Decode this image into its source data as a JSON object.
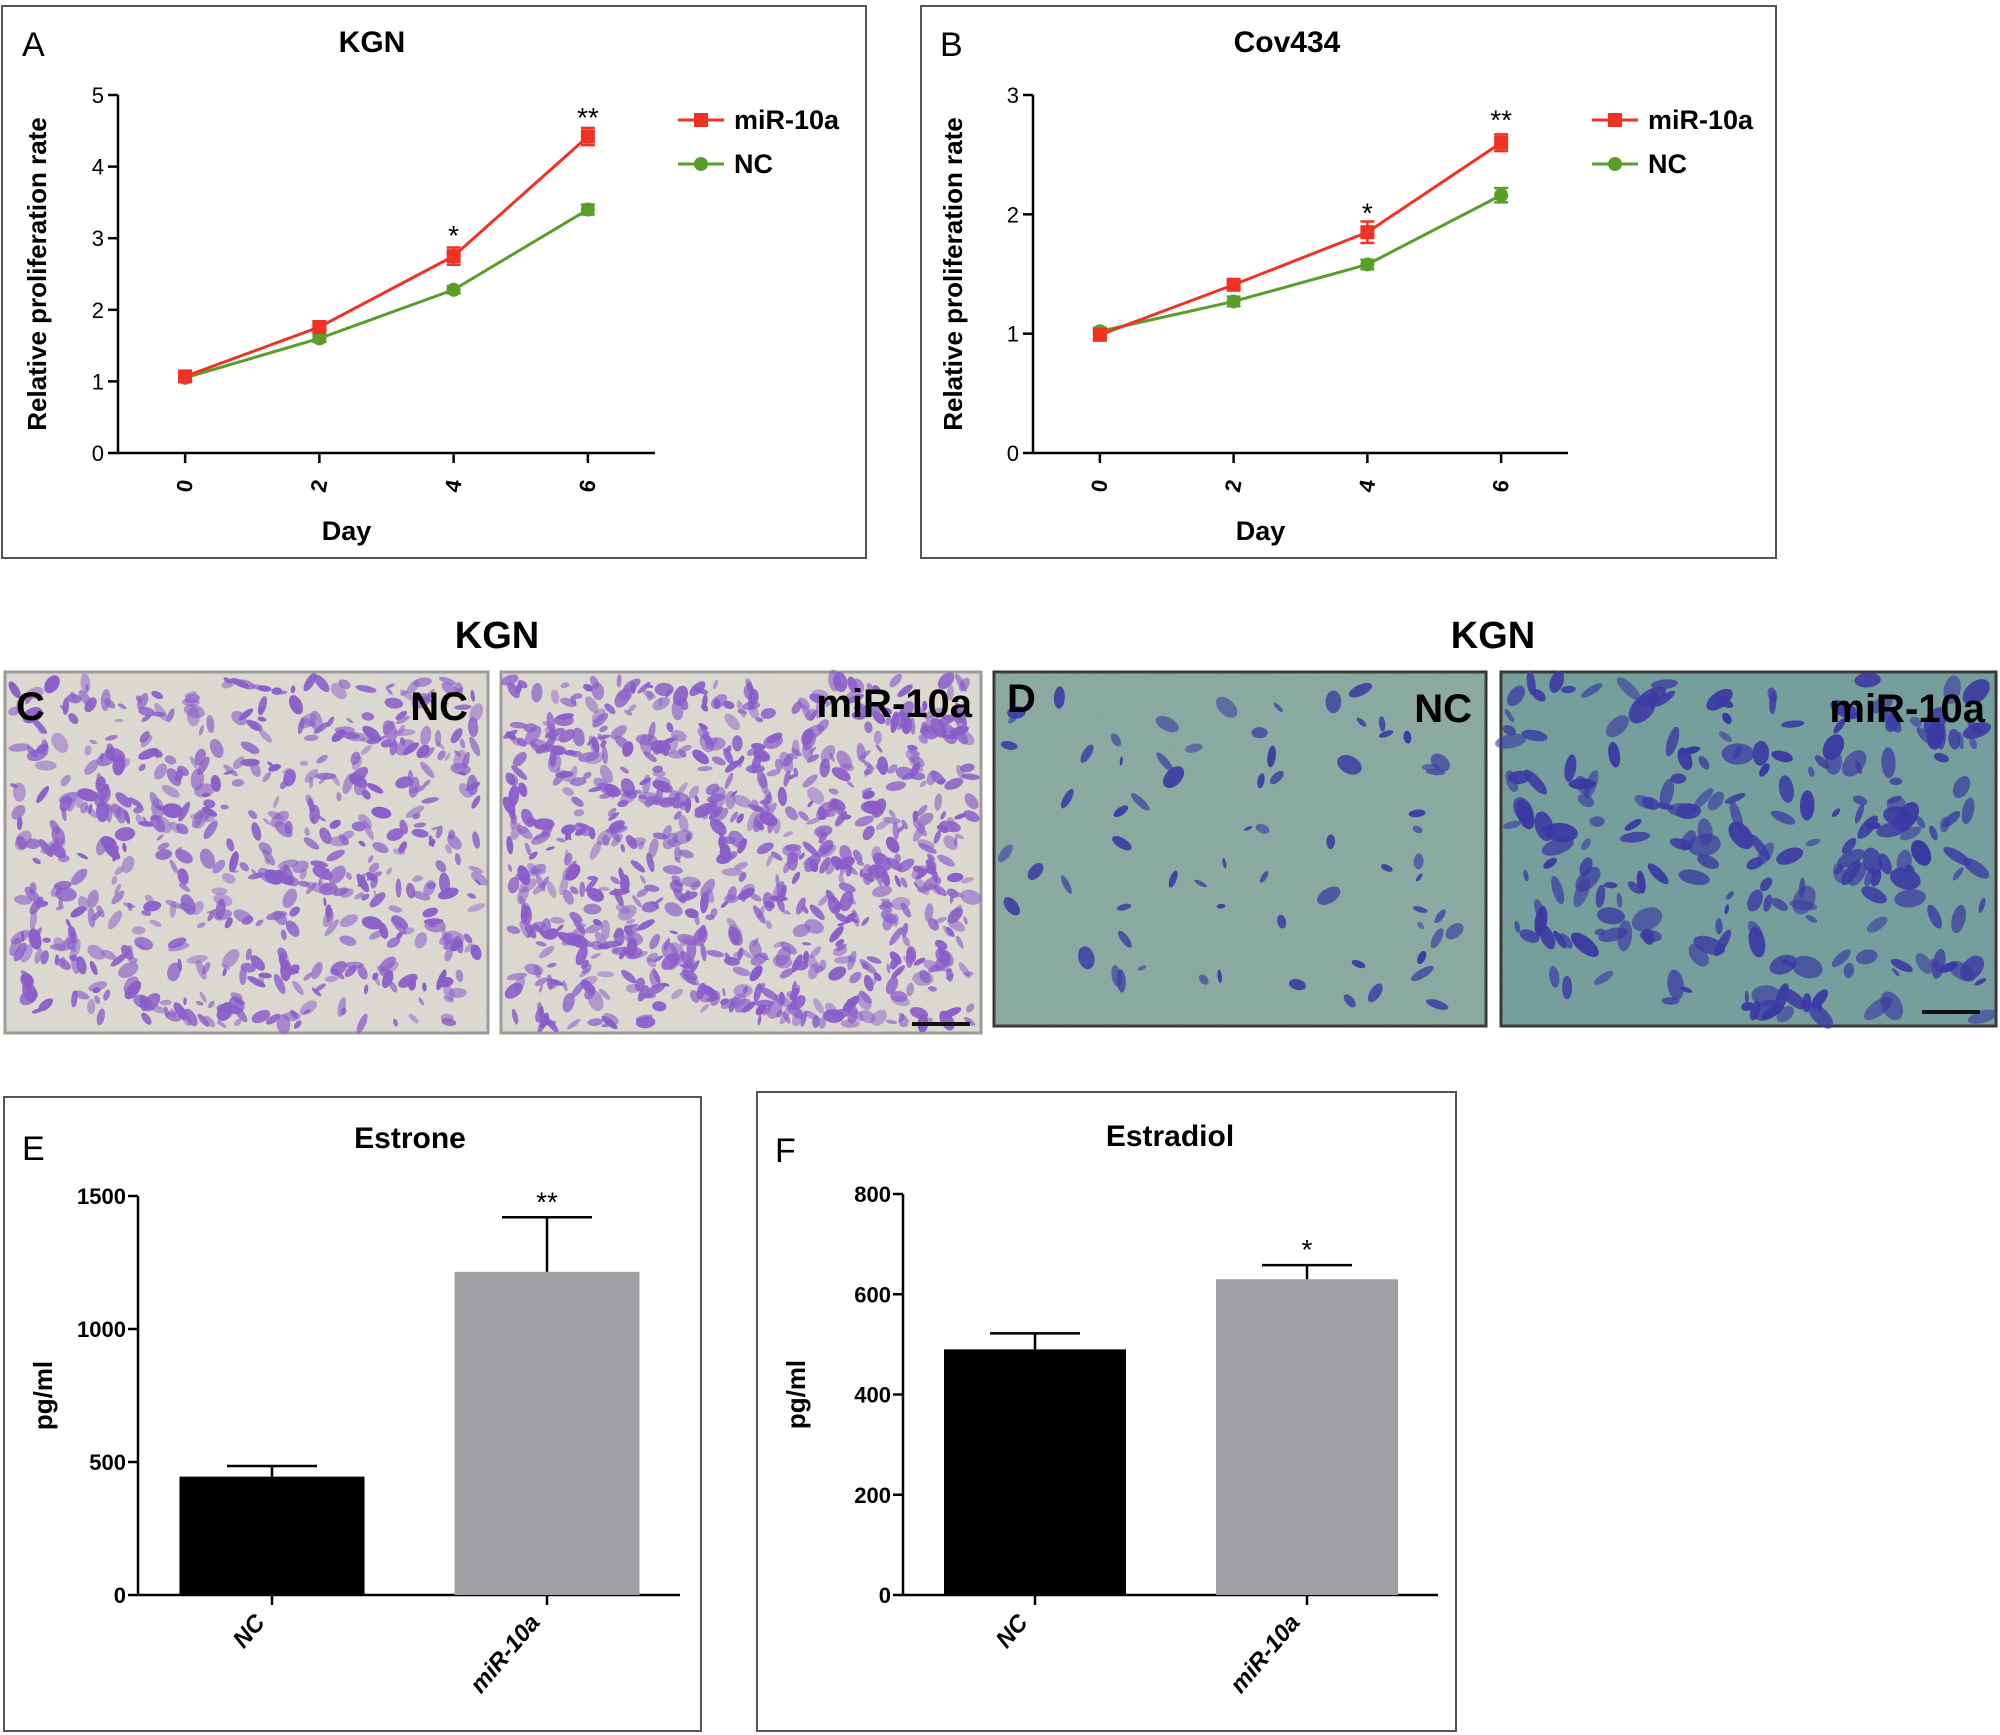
{
  "colors": {
    "mir10a": "#ee3224",
    "nc_line": "#5a9e2a",
    "nc_bar": "#000000",
    "mir10a_bar": "#a0a0a4",
    "axis": "#000000",
    "panel_border": "#555555",
    "crystal_violet_bg": "#dedbd2",
    "crystal_violet_cell": "#8a5cc9",
    "invasion_bg": "#7fa5a0",
    "invasion_cell": "#3b3aa3"
  },
  "panel_a": {
    "letter": "A"
  },
  "panel_b": {
    "letter": "B"
  },
  "panel_c": {
    "letter": "C",
    "title": "KGN",
    "left_label": "NC",
    "right_label": "miR-10a"
  },
  "panel_d": {
    "letter": "D",
    "title": "KGN",
    "left_label": "NC",
    "right_label": "miR-10a"
  },
  "panel_e": {
    "letter": "E"
  },
  "panel_f": {
    "letter": "F"
  },
  "chart_data": [
    {
      "id": "A",
      "type": "line",
      "title": "KGN",
      "xlabel": "Day",
      "ylabel": "Relative proliferation rate",
      "x": [
        0,
        2,
        4,
        6
      ],
      "x_tick_labels": [
        "0",
        "2",
        "4",
        "6"
      ],
      "ylim": [
        0,
        5
      ],
      "y_ticks": [
        0,
        1,
        2,
        3,
        4,
        5
      ],
      "legend_position": "top-right",
      "series": [
        {
          "name": "miR-10a",
          "color": "#ee3224",
          "marker": "square",
          "values": [
            1.07,
            1.76,
            2.75,
            4.42
          ],
          "errors": [
            0.05,
            0.05,
            0.12,
            0.12
          ]
        },
        {
          "name": "NC",
          "color": "#5a9e2a",
          "marker": "circle",
          "values": [
            1.05,
            1.6,
            2.28,
            3.4
          ],
          "errors": [
            0.04,
            0.05,
            0.05,
            0.07
          ]
        }
      ],
      "annotations": [
        {
          "x": 4,
          "y": 3.1,
          "text": "*"
        },
        {
          "x": 6,
          "y": 4.75,
          "text": "**"
        }
      ]
    },
    {
      "id": "B",
      "type": "line",
      "title": "Cov434",
      "xlabel": "Day",
      "ylabel": "Relative proliferation rate",
      "x": [
        0,
        2,
        4,
        6
      ],
      "x_tick_labels": [
        "0",
        "2",
        "4",
        "6"
      ],
      "ylim": [
        0,
        3
      ],
      "y_ticks": [
        0,
        1,
        2,
        3
      ],
      "legend_position": "top-right",
      "series": [
        {
          "name": "miR-10a",
          "color": "#ee3224",
          "marker": "square",
          "values": [
            0.99,
            1.41,
            1.85,
            2.6
          ],
          "errors": [
            0.03,
            0.03,
            0.09,
            0.07
          ]
        },
        {
          "name": "NC",
          "color": "#5a9e2a",
          "marker": "circle",
          "values": [
            1.02,
            1.27,
            1.58,
            2.16
          ],
          "errors": [
            0.03,
            0.04,
            0.04,
            0.06
          ]
        }
      ],
      "annotations": [
        {
          "x": 4,
          "y": 2.05,
          "text": "*"
        },
        {
          "x": 6,
          "y": 2.83,
          "text": "**"
        }
      ]
    },
    {
      "id": "E",
      "type": "bar",
      "title": "Estrone",
      "xlabel": "",
      "ylabel": "pg/ml",
      "categories": [
        "NC",
        "miR-10a"
      ],
      "values": [
        445,
        1215
      ],
      "errors": [
        40,
        205
      ],
      "bar_colors": [
        "#000000",
        "#a0a0a4"
      ],
      "ylim": [
        0,
        1500
      ],
      "y_ticks": [
        0,
        500,
        1000,
        1500
      ],
      "annotations": [
        {
          "category": "miR-10a",
          "text": "**"
        }
      ]
    },
    {
      "id": "F",
      "type": "bar",
      "title": "Estradiol",
      "xlabel": "",
      "ylabel": "pg/ml",
      "categories": [
        "NC",
        "miR-10a"
      ],
      "values": [
        490,
        630
      ],
      "errors": [
        32,
        28
      ],
      "bar_colors": [
        "#000000",
        "#a0a0a4"
      ],
      "ylim": [
        0,
        800
      ],
      "y_ticks": [
        0,
        200,
        400,
        600,
        800
      ],
      "annotations": [
        {
          "category": "miR-10a",
          "text": "*"
        }
      ]
    }
  ]
}
